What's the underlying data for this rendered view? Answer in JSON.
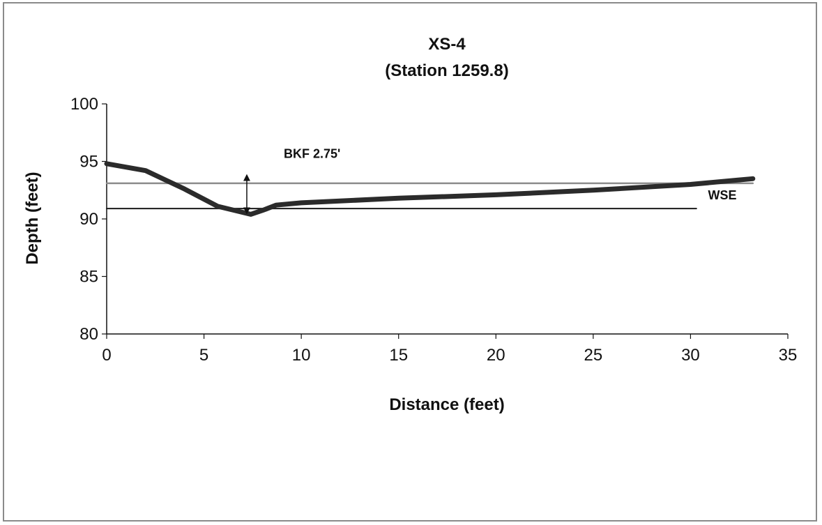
{
  "chart_data": {
    "type": "line",
    "title": "XS-4",
    "subtitle": "(Station 1259.8)",
    "xlabel": "Distance (feet)",
    "ylabel": "Depth (feet)",
    "xlim": [
      0,
      35
    ],
    "ylim": [
      80,
      100
    ],
    "x_ticks": [
      0,
      5,
      10,
      15,
      20,
      25,
      30,
      35
    ],
    "y_ticks": [
      80,
      85,
      90,
      95,
      100
    ],
    "grid": false,
    "series": [
      {
        "x": [
          0,
          2,
          4,
          5.7,
          7.4,
          8.1,
          8.7,
          10,
          15,
          20,
          25,
          30,
          33.2
        ],
        "y": [
          94.8,
          94.2,
          92.6,
          91.1,
          90.4,
          90.8,
          91.2,
          91.4,
          91.8,
          92.1,
          92.5,
          93.0,
          93.5
        ],
        "color": "#2b2b2b"
      },
      {
        "x": [
          0,
          33.2
        ],
        "y": [
          93.1,
          93.1
        ],
        "color": "#8c8c8c"
      },
      {
        "x": [
          0,
          30.3
        ],
        "y": [
          90.9,
          90.9
        ],
        "color": "#1a1a1a"
      }
    ],
    "annotations": [
      {
        "text": "BKF 2.75'",
        "x": 9.1,
        "y": 95.3
      },
      {
        "text": "WSE",
        "x": 30.9,
        "y": 91.7
      }
    ],
    "bkf_arrow": {
      "x": 7.2,
      "y_top": 93.6,
      "y_bottom": 90.7
    }
  }
}
